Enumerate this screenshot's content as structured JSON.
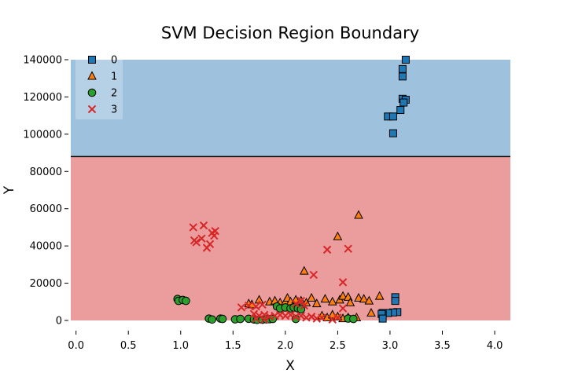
{
  "chart_data": {
    "type": "scatter",
    "title": "SVM Decision Region Boundary",
    "xlabel": "X",
    "ylabel": "Y",
    "xlim": [
      -0.05,
      4.15
    ],
    "ylim": [
      0,
      140000
    ],
    "xticks": [
      "0.0",
      "0.5",
      "1.0",
      "1.5",
      "2.0",
      "2.5",
      "3.0",
      "3.5",
      "4.0"
    ],
    "yticks": [
      "0",
      "20000",
      "40000",
      "60000",
      "80000",
      "100000",
      "120000",
      "140000"
    ],
    "decision_boundary_y": 88000,
    "regions": [
      {
        "class": "0",
        "y_range": [
          88000,
          140000
        ],
        "color": "#9ec2de"
      },
      {
        "class": "3",
        "y_range": [
          0,
          88000
        ],
        "color": "#eb9c9c"
      }
    ],
    "legend": {
      "position": "top-left",
      "entries": [
        "0",
        "1",
        "2",
        "3"
      ]
    },
    "series": [
      {
        "name": "0",
        "marker": "square",
        "color": "#1f77b4",
        "points": [
          [
            3.15,
            140000
          ],
          [
            3.12,
            135000
          ],
          [
            3.12,
            131000
          ],
          [
            3.12,
            119000
          ],
          [
            3.15,
            118500
          ],
          [
            3.13,
            117000
          ],
          [
            3.1,
            113000
          ],
          [
            2.98,
            109500
          ],
          [
            3.03,
            109500
          ],
          [
            3.03,
            100500
          ],
          [
            3.05,
            12500
          ],
          [
            3.05,
            10500
          ],
          [
            3.07,
            4500
          ],
          [
            3.03,
            4300
          ],
          [
            2.98,
            4000
          ],
          [
            2.93,
            4000
          ],
          [
            2.92,
            3500
          ],
          [
            2.93,
            1000
          ]
        ]
      },
      {
        "name": "1",
        "marker": "triangle",
        "color": "#ff7f0e",
        "points": [
          [
            2.7,
            56500
          ],
          [
            2.5,
            45000
          ],
          [
            2.18,
            26500
          ],
          [
            1.65,
            9000
          ],
          [
            1.68,
            8500
          ],
          [
            1.75,
            11000
          ],
          [
            1.85,
            10000
          ],
          [
            1.9,
            10500
          ],
          [
            1.95,
            9500
          ],
          [
            2.0,
            10000
          ],
          [
            2.02,
            12000
          ],
          [
            2.05,
            10000
          ],
          [
            2.1,
            11000
          ],
          [
            2.15,
            10500
          ],
          [
            2.2,
            9500
          ],
          [
            2.25,
            12000
          ],
          [
            2.3,
            9000
          ],
          [
            2.38,
            11500
          ],
          [
            2.45,
            10000
          ],
          [
            2.52,
            11000
          ],
          [
            2.55,
            13000
          ],
          [
            2.6,
            12500
          ],
          [
            2.62,
            9500
          ],
          [
            2.7,
            12000
          ],
          [
            2.75,
            11500
          ],
          [
            2.8,
            10500
          ],
          [
            2.9,
            13000
          ],
          [
            2.82,
            4000
          ],
          [
            2.6,
            1500
          ],
          [
            2.68,
            1500
          ],
          [
            2.55,
            1000
          ],
          [
            2.35,
            2500
          ],
          [
            2.4,
            1500
          ],
          [
            2.45,
            3000
          ],
          [
            2.5,
            2000
          ]
        ]
      },
      {
        "name": "2",
        "marker": "circle",
        "color": "#2ca02c",
        "points": [
          [
            0.97,
            11500
          ],
          [
            0.98,
            10500
          ],
          [
            1.02,
            11000
          ],
          [
            1.05,
            10500
          ],
          [
            1.27,
            1000
          ],
          [
            1.3,
            500
          ],
          [
            1.38,
            1000
          ],
          [
            1.4,
            800
          ],
          [
            1.52,
            600
          ],
          [
            1.57,
            800
          ],
          [
            1.65,
            900
          ],
          [
            1.7,
            500
          ],
          [
            1.73,
            300
          ],
          [
            1.78,
            400
          ],
          [
            1.82,
            600
          ],
          [
            1.85,
            700
          ],
          [
            1.88,
            800
          ],
          [
            1.92,
            7500
          ],
          [
            1.95,
            6500
          ],
          [
            2.0,
            7000
          ],
          [
            2.05,
            6500
          ],
          [
            2.08,
            7000
          ],
          [
            2.12,
            6500
          ],
          [
            2.15,
            6000
          ],
          [
            2.1,
            800
          ],
          [
            2.6,
            1000
          ],
          [
            2.65,
            800
          ]
        ]
      },
      {
        "name": "3",
        "marker": "x",
        "color": "#d62728",
        "points": [
          [
            1.12,
            50000
          ],
          [
            1.22,
            51000
          ],
          [
            1.3,
            47000
          ],
          [
            1.33,
            48000
          ],
          [
            1.32,
            45500
          ],
          [
            1.2,
            44000
          ],
          [
            1.13,
            43000
          ],
          [
            1.15,
            42000
          ],
          [
            1.25,
            39000
          ],
          [
            1.28,
            41000
          ],
          [
            2.4,
            38000
          ],
          [
            2.6,
            38500
          ],
          [
            2.27,
            24500
          ],
          [
            2.55,
            20500
          ],
          [
            1.58,
            7000
          ],
          [
            1.65,
            8000
          ],
          [
            1.72,
            7500
          ],
          [
            1.78,
            8500
          ],
          [
            1.7,
            3500
          ],
          [
            1.75,
            2500
          ],
          [
            1.8,
            3000
          ],
          [
            1.85,
            2000
          ],
          [
            1.9,
            2500
          ],
          [
            1.95,
            3000
          ],
          [
            2.0,
            2500
          ],
          [
            2.05,
            3000
          ],
          [
            2.1,
            2000
          ],
          [
            2.15,
            2500
          ],
          [
            2.2,
            1500
          ],
          [
            2.25,
            2000
          ],
          [
            2.3,
            1000
          ],
          [
            2.35,
            1500
          ],
          [
            2.45,
            500
          ],
          [
            2.5,
            1500
          ],
          [
            2.55,
            6500
          ],
          [
            2.1,
            9000
          ],
          [
            2.15,
            10500
          ],
          [
            2.18,
            8000
          ],
          [
            1.72,
            1000
          ],
          [
            1.8,
            500
          ]
        ]
      }
    ]
  }
}
